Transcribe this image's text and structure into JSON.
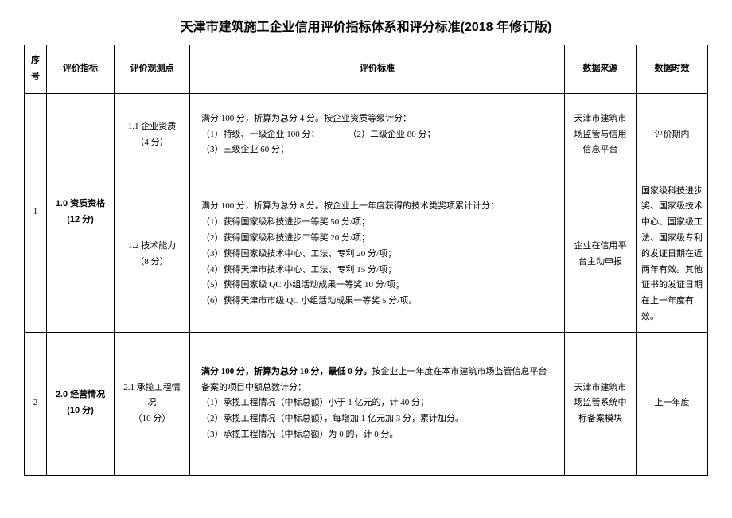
{
  "document": {
    "title": "天津市建筑施工企业信用评价指标体系和评分标准(2018 年修订版)"
  },
  "headers": {
    "seq": "序号",
    "indicator": "评价指标",
    "observe": "评价观测点",
    "criteria": "评价标准",
    "source": "数据来源",
    "validity": "数据时效"
  },
  "rows": {
    "r1": {
      "seq": "1",
      "indicator_name": "1.0 资质资格",
      "indicator_score": "(12 分)",
      "sub1": {
        "observe_name": "1.1 企业资质",
        "observe_score": "（4 分）",
        "criteria_l1": "满分 100 分，折算为总分 4 分。按企业资质等级计分：",
        "criteria_l2a": "（1）特级、一级企业 100 分；",
        "criteria_l2b": "（2）二级企业 80 分；",
        "criteria_l3": "（3）三级企业 60 分；",
        "source": "天津市建筑市场监管与信用信息平台",
        "validity": "评价期内"
      },
      "sub2": {
        "observe_name": "1.2 技术能力",
        "observe_score": "（8 分）",
        "criteria_l1": "满分 100 分，折算为总分 8 分。按企业上一年度获得的技术类奖项累计计分：",
        "criteria_l2": "（1）获得国家级科技进步一等奖  50 分/项；",
        "criteria_l3": "（2）获得国家级科技进步二等奖  20 分/项；",
        "criteria_l4": "（3）获得国家级技术中心、工法、专利  20 分/项；",
        "criteria_l5": "（4）获得天津市技术中心、工法、专利  15 分/项；",
        "criteria_l6": "（5）获得国家级 QC 小组活动成果一等奖  10 分/项；",
        "criteria_l7": "（6）获得天津市市级 QC 小组活动成果一等奖  5 分/项。",
        "source": "企业在信用平台主动申报",
        "validity": "国家级科技进步奖、国家级技术中心、国家级工法、国家级专利的发证日期在近两年有效。其他证书的发证日期在上一年度有效。"
      }
    },
    "r2": {
      "seq": "2",
      "indicator_name": "2.0 经营情况",
      "indicator_score": "(10 分)",
      "observe_name": "2.1 承揽工程情况",
      "observe_score": "（10 分）",
      "criteria_l1": "满分 100 分，折算为总分 10 分，最低 0 分。",
      "criteria_l1b": "按企业上一年度在本市建筑市场监管信息平台备案的项目中额总数计分：",
      "criteria_l2": "（1）承揽工程情况（中标总额）小于 1 亿元的，计 40 分；",
      "criteria_l3": "（2）承揽工程情况（中标总额），每增加 1 亿元加 3 分，累计加分。",
      "criteria_l4": "（3）承揽工程情况（中标总额）为 0 的，计 0 分。",
      "source": "天津市建筑市场监管系统中标备案模块",
      "validity": "上一年度"
    }
  }
}
